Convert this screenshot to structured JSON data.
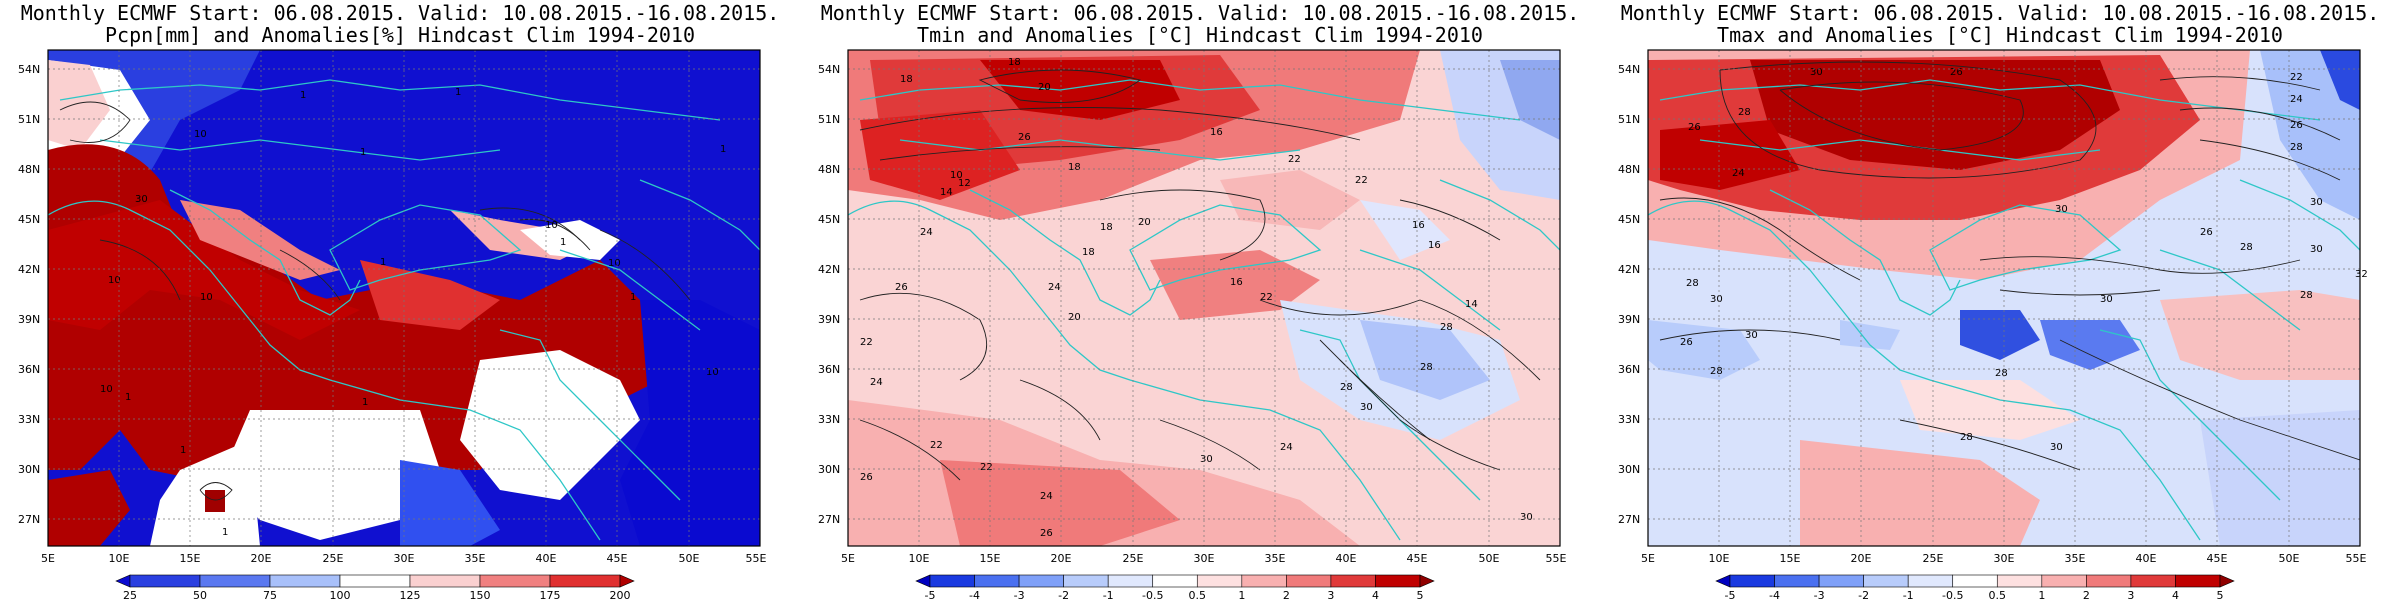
{
  "map_data": {
    "panels": [
      {
        "title_line1": "Monthly ECMWF Start: 06.08.2015. Valid: 10.08.2015.-16.08.2015.",
        "title_line2": "Pcpn[mm] and Anomalies[%] Hindcast Clim 1994-2010",
        "lat_labels": [
          "54N",
          "51N",
          "48N",
          "45N",
          "42N",
          "39N",
          "36N",
          "33N",
          "30N",
          "27N"
        ],
        "lon_labels": [
          "5E",
          "10E",
          "15E",
          "20E",
          "25E",
          "30E",
          "35E",
          "40E",
          "45E",
          "50E",
          "55E"
        ],
        "colorbar_labels": [
          "25",
          "50",
          "75",
          "100",
          "125",
          "150",
          "175",
          "200"
        ],
        "colorbar_colors": [
          "#0a0ad0",
          "#2a3fe0",
          "#5a78f0",
          "#a8c0fa",
          "#ffffff",
          "#fad0d0",
          "#f08080",
          "#e03030",
          "#b00000"
        ],
        "contour_labels": [
          "1",
          "1",
          "1",
          "1",
          "10",
          "10",
          "10",
          "10",
          "10",
          "10",
          "30",
          "1",
          "1",
          "1",
          "1",
          "10",
          "1",
          "1",
          "10"
        ]
      },
      {
        "title_line1": "Monthly ECMWF Start: 06.08.2015. Valid: 10.08.2015.-16.08.2015.",
        "title_line2": "Tmin and Anomalies [°C] Hindcast Clim 1994-2010",
        "lat_labels": [
          "54N",
          "51N",
          "48N",
          "45N",
          "42N",
          "39N",
          "36N",
          "33N",
          "30N",
          "27N"
        ],
        "lon_labels": [
          "5E",
          "10E",
          "15E",
          "20E",
          "25E",
          "30E",
          "35E",
          "40E",
          "45E",
          "50E",
          "55E"
        ],
        "colorbar_labels": [
          "-5",
          "-4",
          "-3",
          "-2",
          "-1",
          "-0.5",
          "0.5",
          "1",
          "2",
          "3",
          "4",
          "5"
        ],
        "colorbar_colors": [
          "#0000c0",
          "#1a3ae0",
          "#4a70f0",
          "#7fa0f8",
          "#b8ccfb",
          "#e0e8fd",
          "#ffffff",
          "#fde0e0",
          "#f8b0b0",
          "#f07a7a",
          "#e03a3a",
          "#c00000",
          "#900000"
        ],
        "contour_labels": [
          "18",
          "18",
          "20",
          "26",
          "18",
          "22",
          "16",
          "14",
          "10",
          "12",
          "16",
          "18",
          "24",
          "22",
          "20",
          "22",
          "16",
          "18",
          "26",
          "16",
          "14",
          "22",
          "24",
          "20",
          "28",
          "30",
          "22",
          "24",
          "26",
          "28",
          "24",
          "30",
          "22",
          "24",
          "26",
          "28",
          "30"
        ]
      },
      {
        "title_line1": "Monthly ECMWF Start: 06.08.2015. Valid: 10.08.2015.-16.08.2015.",
        "title_line2": "Tmax and Anomalies [°C] Hindcast Clim 1994-2010",
        "lat_labels": [
          "54N",
          "51N",
          "48N",
          "45N",
          "42N",
          "39N",
          "36N",
          "33N",
          "30N",
          "27N"
        ],
        "lon_labels": [
          "5E",
          "10E",
          "15E",
          "20E",
          "25E",
          "30E",
          "35E",
          "40E",
          "45E",
          "50E",
          "55E"
        ],
        "colorbar_labels": [
          "-5",
          "-4",
          "-3",
          "-2",
          "-1",
          "-0.5",
          "0.5",
          "1",
          "2",
          "3",
          "4",
          "5"
        ],
        "colorbar_colors": [
          "#0000c0",
          "#1a3ae0",
          "#4a70f0",
          "#7fa0f8",
          "#b8ccfb",
          "#e0e8fd",
          "#ffffff",
          "#fde0e0",
          "#f8b0b0",
          "#f07a7a",
          "#e03a3a",
          "#c00000",
          "#900000"
        ],
        "contour_labels": [
          "26",
          "30",
          "22",
          "24",
          "26",
          "28",
          "30",
          "28",
          "24",
          "30",
          "26",
          "26",
          "28",
          "30",
          "28",
          "30",
          "28",
          "30",
          "28",
          "30",
          "32",
          "26",
          "26",
          "28",
          "30"
        ]
      }
    ]
  }
}
